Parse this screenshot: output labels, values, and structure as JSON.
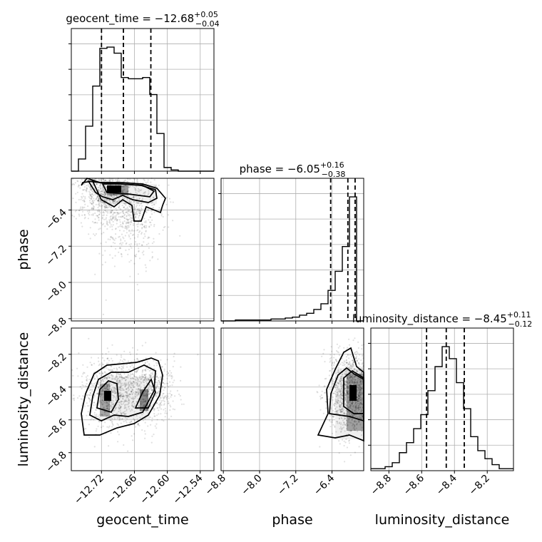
{
  "chart_data": {
    "type": "corner",
    "parameters": [
      {
        "name": "geocent_time",
        "label": "geocent_time",
        "median": -12.68,
        "err_plus": 0.05,
        "err_minus": 0.04,
        "range": [
          -12.775,
          -12.515
        ],
        "ticks": [
          -12.72,
          -12.66,
          -12.6,
          -12.54
        ],
        "quantiles": [
          -12.72,
          -12.68,
          -12.63
        ]
      },
      {
        "name": "phase",
        "label": "phase",
        "median": -6.05,
        "err_plus": 0.16,
        "err_minus": 0.38,
        "range": [
          -8.85,
          -5.7
        ],
        "ticks": [
          -8.8,
          -8.0,
          -7.2,
          -6.4
        ],
        "quantiles": [
          -6.43,
          -6.05,
          -5.89
        ]
      },
      {
        "name": "luminosity_distance",
        "label": "luminosity_distance",
        "median": -8.45,
        "err_plus": 0.11,
        "err_minus": 0.12,
        "range": [
          -8.91,
          -8.04
        ],
        "ticks": [
          -8.8,
          -8.6,
          -8.4,
          -8.2
        ],
        "quantiles": [
          -8.57,
          -8.45,
          -8.34
        ]
      }
    ],
    "histograms": [
      {
        "param": "geocent_time",
        "bin_edges": [
          -12.775,
          -12.762,
          -12.749,
          -12.736,
          -12.723,
          -12.71,
          -12.697,
          -12.684,
          -12.671,
          -12.658,
          -12.645,
          -12.632,
          -12.619,
          -12.606,
          -12.593,
          -12.58,
          -12.567,
          -12.554,
          -12.541,
          -12.528,
          -12.515
        ],
        "counts": [
          0,
          10,
          37,
          70,
          101,
          102,
          97,
          77,
          76,
          76,
          77,
          63,
          31,
          3,
          1,
          0,
          0,
          0,
          0,
          0
        ]
      },
      {
        "param": "phase",
        "bin_edges": [
          -8.85,
          -8.6925,
          -8.535,
          -8.3775,
          -8.22,
          -8.0625,
          -7.905,
          -7.7475,
          -7.59,
          -7.4325,
          -7.275,
          -7.1175,
          -6.96,
          -6.8025,
          -6.645,
          -6.4875,
          -6.33,
          -6.1725,
          -6.015,
          -5.8575,
          -5.7
        ],
        "counts": [
          0,
          0,
          1,
          1,
          1,
          1,
          1,
          2,
          2,
          3,
          4,
          6,
          8,
          12,
          18,
          32,
          52,
          78,
          130,
          0
        ]
      },
      {
        "param": "luminosity_distance",
        "bin_edges": [
          -8.91,
          -8.8665,
          -8.823,
          -8.7795,
          -8.736,
          -8.6925,
          -8.649,
          -8.6055,
          -8.562,
          -8.5185,
          -8.475,
          -8.4315,
          -8.388,
          -8.3445,
          -8.301,
          -8.2575,
          -8.214,
          -8.1705,
          -8.127,
          -8.0835,
          -8.04
        ],
        "counts": [
          1,
          1,
          2,
          4,
          9,
          14,
          21,
          28,
          40,
          52,
          62,
          56,
          44,
          31,
          17,
          10,
          6,
          3,
          1,
          1
        ]
      }
    ],
    "panels_2d": [
      {
        "x": "geocent_time",
        "y": "phase"
      },
      {
        "x": "geocent_time",
        "y": "luminosity_distance"
      },
      {
        "x": "phase",
        "y": "luminosity_distance"
      }
    ],
    "grid": true
  },
  "titles": [
    {
      "prefix": "geocent_time = −12.68",
      "sup": "+0.05",
      "sub": "−0.04"
    },
    {
      "prefix": "phase = −6.05",
      "sup": "+0.16",
      "sub": "−0.38"
    },
    {
      "prefix": "luminosity_distance = −8.45",
      "sup": "+0.11",
      "sub": "−0.12"
    }
  ],
  "tick_labels": {
    "geocent_time": [
      "−12.72",
      "−12.66",
      "−12.60",
      "−12.54"
    ],
    "phase": [
      "−8.8",
      "−8.0",
      "−7.2",
      "−6.4"
    ],
    "luminosity_distance": [
      "−8.8",
      "−8.6",
      "−8.4",
      "−8.2"
    ]
  },
  "axis_labels": {
    "geocent_time": "geocent_time",
    "phase": "phase",
    "luminosity_distance": "luminosity_distance"
  }
}
